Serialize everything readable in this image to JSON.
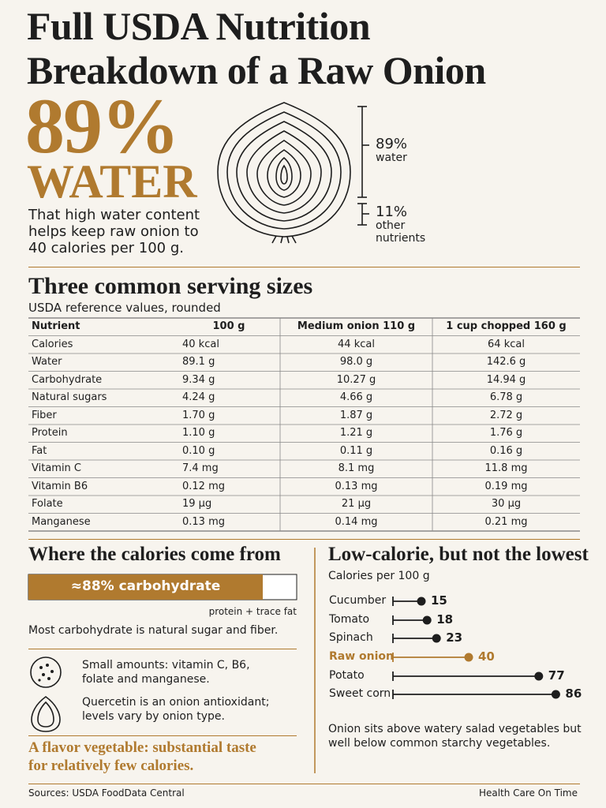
{
  "header": {
    "title_lines": [
      "Full USDA Nutrition",
      "Breakdown of a Raw Onion"
    ]
  },
  "hero": {
    "percent": "89%",
    "word": "WATER",
    "text_lines": [
      "That high water content",
      "helps keep raw onion to",
      "40 calories per 100 g."
    ]
  },
  "onion": {
    "water_percent": "89%",
    "water_label": "water",
    "other_percent": "11%",
    "other_label_lines": [
      "other",
      "nutrients"
    ]
  },
  "servings": {
    "title": "Three common serving sizes",
    "subtitle": "USDA reference values, rounded",
    "table": {
      "columns": [
        "Nutrient",
        "100 g",
        "Medium onion 110 g",
        "1 cup chopped 160 g"
      ],
      "rows": [
        [
          "Calories",
          "40 kcal",
          "44 kcal",
          "64 kcal"
        ],
        [
          "Water",
          "89.1 g",
          "98.0 g",
          "142.6 g"
        ],
        [
          "Carbohydrate",
          "9.34 g",
          "10.27 g",
          "14.94 g"
        ],
        [
          "Natural sugars",
          "4.24 g",
          "4.66 g",
          "6.78 g"
        ],
        [
          "Fiber",
          "1.70 g",
          "1.87 g",
          "2.72 g"
        ],
        [
          "Protein",
          "1.10 g",
          "1.21 g",
          "1.76 g"
        ],
        [
          "Fat",
          "0.10 g",
          "0.11 g",
          "0.16 g"
        ],
        [
          "Vitamin C",
          "7.4 mg",
          "8.1 mg",
          "11.8 mg"
        ],
        [
          "Vitamin B6",
          "0.12 mg",
          "0.13 mg",
          "0.19 mg"
        ],
        [
          "Folate",
          "19 µg",
          "21 µg",
          "30 µg"
        ],
        [
          "Manganese",
          "0.13 mg",
          "0.14 mg",
          "0.21 mg"
        ]
      ]
    }
  },
  "calories": {
    "title": "Where the calories come from",
    "bar_label": "≈88% carbohydrate",
    "rest_label": "protein + trace fat",
    "note": "Most carbohydrate is natural sugar and fiber.",
    "items": [
      {
        "lines": [
          "Small amounts: vitamin C, B6,",
          "folate and manganese."
        ]
      },
      {
        "lines": [
          "Quercetin is an onion antioxidant;",
          "levels vary by onion type."
        ]
      }
    ],
    "callout_lines": [
      "A flavor vegetable: substantial taste",
      "for relatively few calories."
    ]
  },
  "comparison": {
    "title": "Low-calorie, but not the lowest",
    "subtitle": "Calories per 100 g",
    "categories": [
      "Cucumber",
      "Tomato",
      "Spinach",
      "Raw onion",
      "Potato",
      "Sweet corn"
    ],
    "values": [
      15,
      18,
      23,
      40,
      77,
      86
    ],
    "colors": [
      "#1e1e1e",
      "#1e1e1e",
      "#1e1e1e",
      "#b07a2f",
      "#1e1e1e",
      "#1e1e1e"
    ],
    "note_lines": [
      "Onion sits above watery salad vegetables but",
      "well below common starchy vegetables."
    ]
  },
  "footer": {
    "source": "Sources: USDA FoodData Central",
    "brand": "Health Care On Time"
  }
}
